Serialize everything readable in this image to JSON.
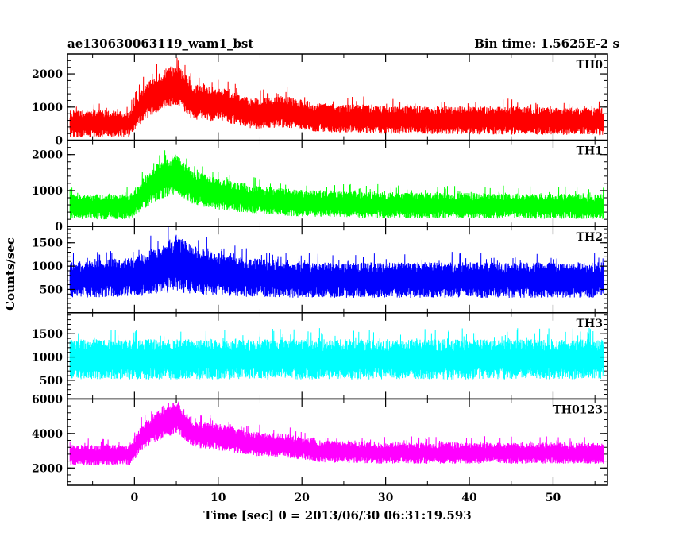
{
  "header": {
    "title": "ae130630063119_wam1_bst",
    "bin_time": "Bin time: 1.5625E-2 s"
  },
  "chart_data": {
    "type": "line",
    "ylabel": "Counts/sec",
    "xlabel": "Time [sec] 0 = 2013/06/30 06:31:19.593",
    "xlim": [
      -8,
      56.5
    ],
    "x_ticks": [
      0,
      10,
      20,
      30,
      40,
      50
    ],
    "x_tick_labels": [
      "0",
      "10",
      "20",
      "30",
      "40",
      "50"
    ],
    "panels": [
      {
        "label": "TH0",
        "color": "#ff0000",
        "ylim": [
          0,
          2600
        ],
        "y_ticks": [
          0,
          1000,
          2000
        ],
        "y_tick_labels": [
          "0",
          "1000",
          "2000"
        ],
        "baseline": 500,
        "noise": 400,
        "burst_peak": 1200,
        "profile": [
          [
            -8,
            0
          ],
          [
            -0.5,
            0
          ],
          [
            1,
            0.5
          ],
          [
            3,
            0.8
          ],
          [
            5,
            1.0
          ],
          [
            7,
            0.55
          ],
          [
            9,
            0.5
          ],
          [
            11,
            0.45
          ],
          [
            14,
            0.25
          ],
          [
            18,
            0.3
          ],
          [
            22,
            0.15
          ],
          [
            30,
            0.1
          ],
          [
            56.5,
            0.05
          ]
        ]
      },
      {
        "label": "TH1",
        "color": "#00ff00",
        "ylim": [
          0,
          2400
        ],
        "y_ticks": [
          0,
          1000,
          2000
        ],
        "y_tick_labels": [
          "0",
          "1000",
          "2000"
        ],
        "baseline": 550,
        "noise": 350,
        "burst_peak": 900,
        "profile": [
          [
            -8,
            0
          ],
          [
            -0.5,
            0
          ],
          [
            1,
            0.4
          ],
          [
            3,
            0.8
          ],
          [
            5,
            1.0
          ],
          [
            7,
            0.6
          ],
          [
            9,
            0.45
          ],
          [
            11,
            0.35
          ],
          [
            15,
            0.2
          ],
          [
            20,
            0.1
          ],
          [
            30,
            0.05
          ],
          [
            56.5,
            0.0
          ]
        ]
      },
      {
        "label": "TH2",
        "color": "#0000ff",
        "ylim": [
          0,
          1850
        ],
        "y_ticks": [
          500,
          1000,
          1500
        ],
        "y_tick_labels": [
          "500",
          "1000",
          "1500"
        ],
        "baseline": 700,
        "noise": 380,
        "burst_peak": 350,
        "profile": [
          [
            -8,
            0
          ],
          [
            0,
            0.2
          ],
          [
            5,
            1.0
          ],
          [
            8,
            0.5
          ],
          [
            12,
            0.2
          ],
          [
            20,
            0.0
          ],
          [
            56.5,
            0.0
          ]
        ]
      },
      {
        "label": "TH3",
        "color": "#00ffff",
        "ylim": [
          100,
          1950
        ],
        "y_ticks": [
          500,
          1000,
          1500
        ],
        "y_tick_labels": [
          "500",
          "1000",
          "1500"
        ],
        "baseline": 950,
        "noise": 430,
        "burst_peak": 0,
        "profile": [
          [
            -8,
            0
          ],
          [
            56.5,
            0
          ]
        ]
      },
      {
        "label": "TH0123",
        "color": "#ff00ff",
        "ylim": [
          1000,
          6000
        ],
        "y_ticks": [
          2000,
          4000,
          6000
        ],
        "y_tick_labels": [
          "2000",
          "4000",
          "6000"
        ],
        "baseline": 2750,
        "noise": 600,
        "burst_peak": 2200,
        "profile": [
          [
            -8,
            0
          ],
          [
            -0.5,
            0
          ],
          [
            1,
            0.5
          ],
          [
            3,
            0.8
          ],
          [
            5,
            1.0
          ],
          [
            7,
            0.55
          ],
          [
            9,
            0.5
          ],
          [
            11,
            0.45
          ],
          [
            14,
            0.3
          ],
          [
            18,
            0.25
          ],
          [
            22,
            0.1
          ],
          [
            30,
            0.05
          ],
          [
            56.5,
            0.05
          ]
        ]
      }
    ]
  }
}
